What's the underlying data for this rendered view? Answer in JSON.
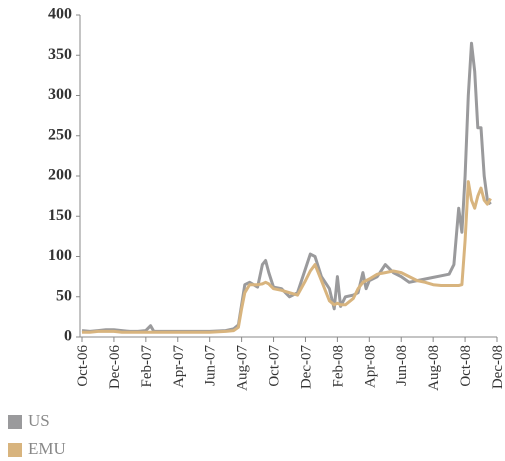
{
  "chart_data": {
    "type": "line",
    "x": [
      0,
      0.5,
      1,
      1.5,
      2,
      2.5,
      3,
      3.5,
      4,
      4.3,
      4.5,
      5,
      6,
      7,
      8,
      9,
      9.5,
      9.8,
      10,
      10.2,
      10.5,
      11,
      11.3,
      11.5,
      11.7,
      12,
      12.5,
      13,
      13.5,
      14,
      14.3,
      14.6,
      15,
      15.5,
      15.8,
      16,
      16.2,
      16.5,
      17,
      17.3,
      17.6,
      17.8,
      18,
      18.5,
      19,
      19.5,
      20,
      20.5,
      21,
      21.5,
      22,
      22.5,
      23,
      23.3,
      23.6,
      23.8,
      24,
      24.2,
      24.4,
      24.6,
      24.8,
      25,
      25.2,
      25.4,
      25.6
    ],
    "series": [
      {
        "name": "US",
        "color": "#9a9a9c",
        "values": [
          8,
          7,
          8,
          9,
          9,
          8,
          7,
          7,
          8,
          14,
          7,
          7,
          7,
          7,
          7,
          8,
          10,
          15,
          40,
          65,
          68,
          62,
          90,
          95,
          80,
          62,
          60,
          50,
          55,
          85,
          103,
          100,
          75,
          60,
          35,
          75,
          38,
          50,
          52,
          55,
          80,
          60,
          70,
          75,
          90,
          80,
          75,
          68,
          70,
          72,
          74,
          76,
          78,
          90,
          160,
          130,
          200,
          300,
          365,
          330,
          260,
          260,
          200,
          170,
          165
        ]
      },
      {
        "name": "EMU",
        "color": "#d8b47e",
        "values": [
          6,
          6,
          7,
          7,
          7,
          6,
          6,
          6,
          6,
          6,
          6,
          6,
          6,
          6,
          6,
          7,
          8,
          12,
          35,
          55,
          65,
          65,
          66,
          68,
          66,
          60,
          58,
          55,
          52,
          70,
          82,
          90,
          70,
          45,
          40,
          42,
          40,
          40,
          48,
          60,
          68,
          70,
          72,
          78,
          80,
          82,
          80,
          75,
          70,
          68,
          65,
          64,
          64,
          64,
          64,
          65,
          120,
          193,
          170,
          160,
          175,
          185,
          170,
          165,
          172
        ]
      }
    ],
    "xlim": [
      0,
      26
    ],
    "xticks": [
      {
        "value": 0,
        "label": "Oct-06"
      },
      {
        "value": 2,
        "label": "Dec-06"
      },
      {
        "value": 4,
        "label": "Feb-07"
      },
      {
        "value": 6,
        "label": "Apr-07"
      },
      {
        "value": 8,
        "label": "Jun-07"
      },
      {
        "value": 10,
        "label": "Aug-07"
      },
      {
        "value": 12,
        "label": "Oct-07"
      },
      {
        "value": 14,
        "label": "Dec-07"
      },
      {
        "value": 16,
        "label": "Feb-08"
      },
      {
        "value": 18,
        "label": "Apr-08"
      },
      {
        "value": 20,
        "label": "Jun-08"
      },
      {
        "value": 22,
        "label": "Aug-08"
      },
      {
        "value": 24,
        "label": "Oct-08"
      },
      {
        "value": 26,
        "label": "Dec-08"
      }
    ],
    "ylim": [
      0,
      400
    ],
    "yticks": [
      0,
      50,
      100,
      150,
      200,
      250,
      300,
      350,
      400
    ],
    "grid": false
  }
}
